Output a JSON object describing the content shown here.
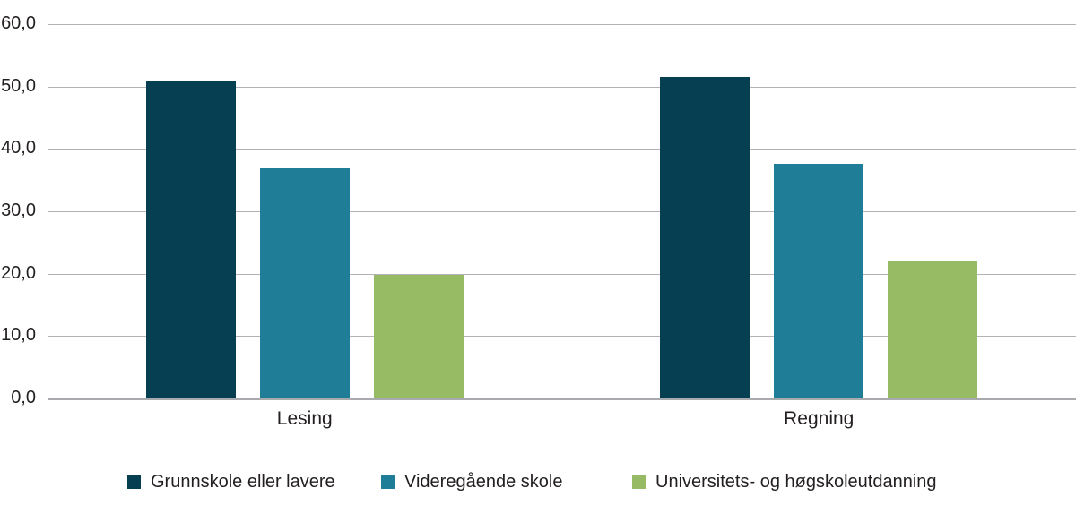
{
  "chart_data": {
    "type": "bar",
    "title": "",
    "xlabel": "",
    "ylabel": "",
    "categories": [
      "Lesing",
      "Regning"
    ],
    "series": [
      {
        "name": "Grunnskole eller lavere",
        "color": "#063f52",
        "values": [
          50.9,
          51.7
        ]
      },
      {
        "name": "Videregående skole",
        "color": "#1f7d98",
        "values": [
          37.0,
          37.8
        ]
      },
      {
        "name": "Universitets- og høgskoleutdanning",
        "color": "#96bb64",
        "values": [
          19.9,
          22.1
        ]
      }
    ],
    "y_axis": {
      "min": 0,
      "max": 60,
      "step": 10,
      "tick_labels": [
        "0,0",
        "10,0",
        "20,0",
        "30,0",
        "40,0",
        "50,0",
        "60,0"
      ]
    },
    "grid": true,
    "legend_position": "bottom"
  },
  "colors": {
    "background": "#ffffff",
    "gridline": "#b1b3b6",
    "axis_line": "#a8aaad",
    "text": "#231f20"
  }
}
